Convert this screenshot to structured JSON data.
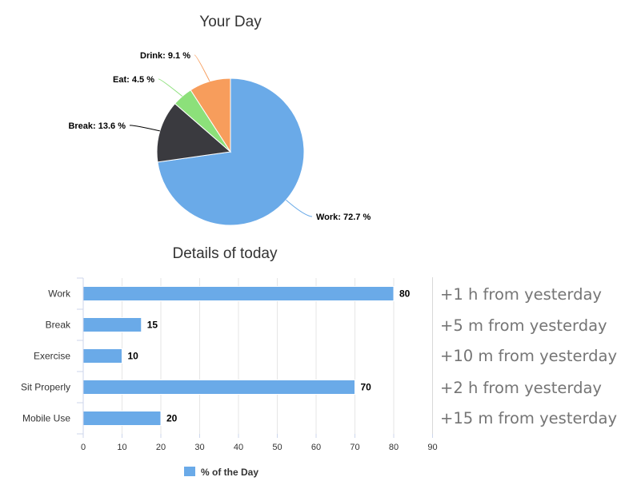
{
  "chart_data": [
    {
      "type": "pie",
      "title": "Your Day",
      "slices": [
        {
          "name": "Work",
          "value": 72.7,
          "label": "Work: 72.7 %",
          "color": "#6aaae8"
        },
        {
          "name": "Break",
          "value": 13.6,
          "label": "Break: 13.6 %",
          "color": "#3a3a3f"
        },
        {
          "name": "Eat",
          "value": 4.5,
          "label": "Eat: 4.5 %",
          "color": "#8ce07a"
        },
        {
          "name": "Drink",
          "value": 9.1,
          "label": "Drink: 9.1 %",
          "color": "#f79d5c"
        }
      ]
    },
    {
      "type": "bar",
      "orientation": "horizontal",
      "title": "Details of today",
      "categories": [
        "Work",
        "Break",
        "Exercise",
        "Sit Properly",
        "Mobile Use"
      ],
      "series": [
        {
          "name": "% of the Day",
          "values": [
            80,
            15,
            10,
            70,
            20
          ],
          "color": "#6aaae8"
        }
      ],
      "xlim": [
        0,
        90
      ],
      "xticks": [
        0,
        10,
        20,
        30,
        40,
        50,
        60,
        70,
        80,
        90
      ],
      "grid": true,
      "legend": "bottom-center"
    }
  ],
  "notes": [
    "+1 h from yesterday",
    "+5 m from yesterday",
    "+10 m from yesterday",
    "+2 h from yesterday",
    "+15 m from yesterday"
  ],
  "colors": {
    "bar": "#6aaae8",
    "grid": "#e6e6e6",
    "note_text": "#757575"
  }
}
